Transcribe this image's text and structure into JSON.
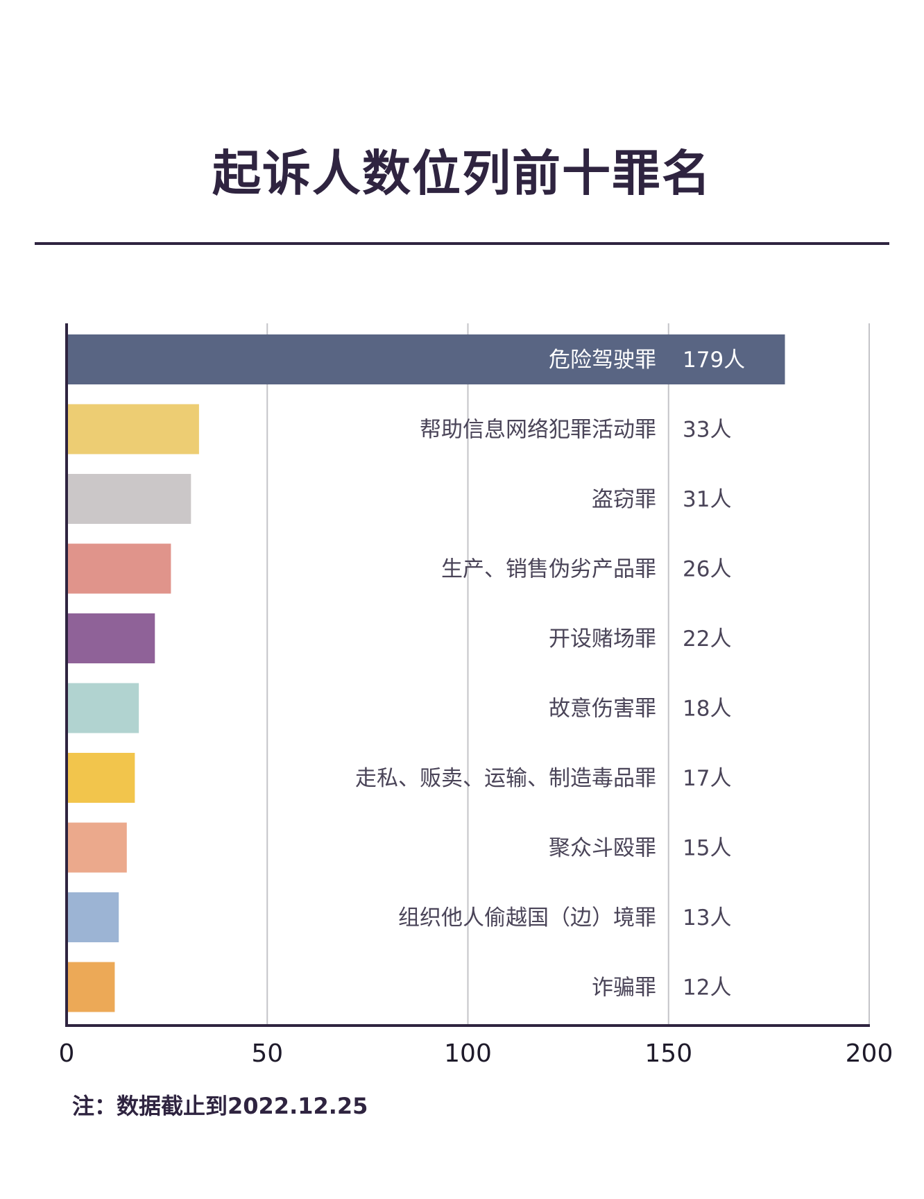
{
  "chart_data": {
    "type": "bar",
    "orientation": "horizontal",
    "title": "起诉人数位列前十罪名",
    "categories": [
      "危险驾驶罪",
      "帮助信息网络犯罪活动罪",
      "盗窃罪",
      "生产、销售伪劣产品罪",
      "开设赌场罪",
      "故意伤害罪",
      "走私、贩卖、运输、制造毒品罪",
      "聚众斗殴罪",
      "组织他人偷越国（边）境罪",
      "诈骗罪"
    ],
    "values": [
      179,
      33,
      31,
      26,
      22,
      18,
      17,
      15,
      13,
      12
    ],
    "value_labels": [
      "179人",
      "33人",
      "31人",
      "26人",
      "22人",
      "18人",
      "17人",
      "15人",
      "13人",
      "12人"
    ],
    "colors": [
      "#596583",
      "#edcd73",
      "#cbc7c8",
      "#e0948b",
      "#8f6298",
      "#b1d3d0",
      "#f2c54c",
      "#eba98c",
      "#9cb4d4",
      "#eca957"
    ],
    "xlim": [
      0,
      200
    ],
    "xticks": [
      "0",
      "50",
      "100",
      "150",
      "200"
    ],
    "grid": true,
    "note": "注：数据截止到2022.12.25"
  }
}
